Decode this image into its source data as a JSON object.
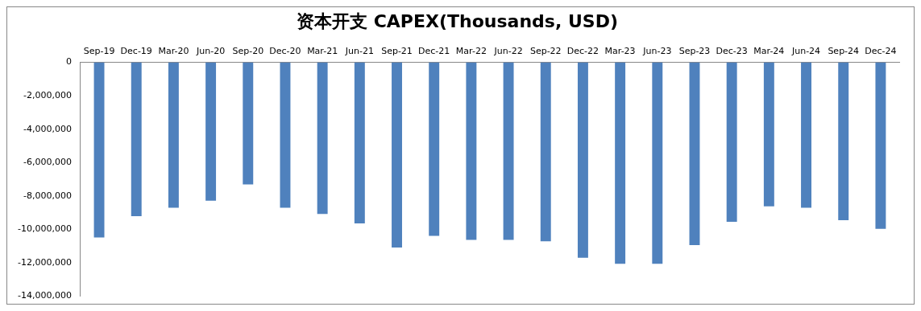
{
  "chart_data": {
    "type": "bar",
    "title": "资本开支 CAPEX(Thousands, USD)",
    "categories": [
      "Sep-19",
      "Dec-19",
      "Mar-20",
      "Jun-20",
      "Sep-20",
      "Dec-20",
      "Mar-21",
      "Jun-21",
      "Sep-21",
      "Dec-21",
      "Mar-22",
      "Jun-22",
      "Sep-22",
      "Dec-22",
      "Mar-23",
      "Jun-23",
      "Sep-23",
      "Dec-23",
      "Mar-24",
      "Jun-24",
      "Sep-24",
      "Dec-24"
    ],
    "values": [
      -10490000,
      -9220000,
      -8710000,
      -8290000,
      -7310000,
      -8710000,
      -9080000,
      -9650000,
      -11090000,
      -10390000,
      -10630000,
      -10630000,
      -10720000,
      -11700000,
      -12070000,
      -12070000,
      -10950000,
      -9550000,
      -8620000,
      -8710000,
      -9460000,
      -9970000
    ],
    "color": "#4f81bd",
    "ylim": [
      -14000000,
      0
    ],
    "yticks": [
      0,
      {
        "value": -2000000,
        "label": "-2,000,000"
      },
      {
        "value": -4000000,
        "label": "-4,000,000"
      },
      {
        "value": -6000000,
        "label": "-6,000,000"
      },
      {
        "value": -8000000,
        "label": "-8,000,000"
      },
      {
        "value": -10000000,
        "label": "-10,000,000"
      },
      {
        "value": -12000000,
        "label": "-12,000,000"
      },
      {
        "value": -14000000,
        "label": "-14,000,000"
      }
    ],
    "grid": false,
    "legend": false
  }
}
